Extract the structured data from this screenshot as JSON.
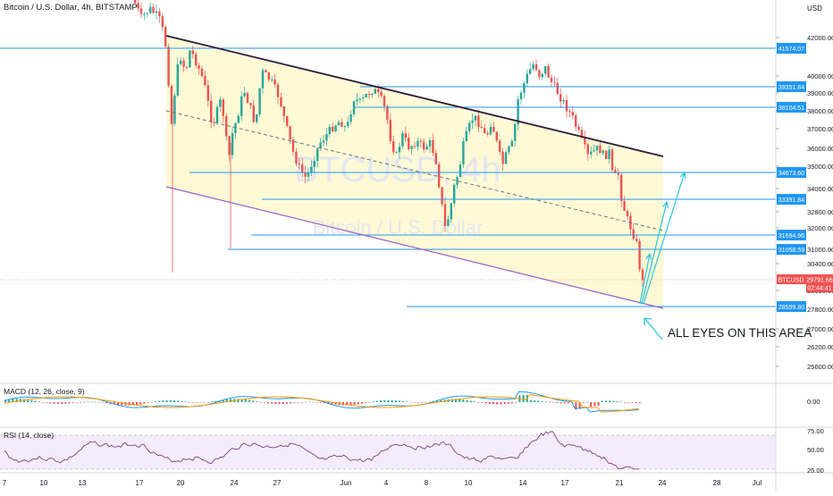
{
  "header": {
    "symbol_title": "Bitcoin / U.S. Dollar, 4h, BITSTAMP",
    "currency_label": "USD"
  },
  "watermark": {
    "line1": "BTCUSD, 4h",
    "line2": "Bitcoin / U.S. Dollar"
  },
  "price_axis": {
    "ticks": [
      "42000.00",
      "40000.00",
      "39000.00",
      "38000.00",
      "37000.00",
      "36000.00",
      "35000.00",
      "34000.00",
      "32800.00",
      "32000.00",
      "31000.00",
      "30400.00",
      "28600.00",
      "27800.00",
      "27000.00",
      "26200.00",
      "25600.00"
    ]
  },
  "level_labels": [
    "41574.07",
    "39351.84",
    "38104.51",
    "34673.60",
    "33391.84",
    "31694.96",
    "31058.59",
    "28599.80"
  ],
  "current_price": {
    "symbol": "BTCUSD",
    "price": "29791.66",
    "countdown": "02:44:41"
  },
  "annotation": {
    "text": "ALL EYES ON THIS AREA"
  },
  "time_axis": {
    "labels": [
      "7",
      "10",
      "13",
      "17",
      "20",
      "24",
      "27",
      "Jun",
      "4",
      "8",
      "10",
      "14",
      "17",
      "21",
      "24",
      "28",
      "Jul"
    ]
  },
  "macd": {
    "title": "MACD (12, 26, close, 9)",
    "tick": "0.00"
  },
  "rsi": {
    "title": "RSI (14, close)",
    "ticks": [
      "75.00",
      "50.00",
      "25.00"
    ]
  },
  "colors": {
    "level_line": "#2196f3",
    "channel_top": "#2a1a3a",
    "channel_bottom": "#9c5fc9",
    "channel_fill": "#fff9d6",
    "candle_up": "#26a69a",
    "candle_down": "#ef5350",
    "arrow": "#26c6da",
    "rsi_line": "#7e3f8f",
    "rsi_band": "#ede0f7",
    "macd_line": "#2196f3",
    "signal_line": "#ff9800"
  }
}
